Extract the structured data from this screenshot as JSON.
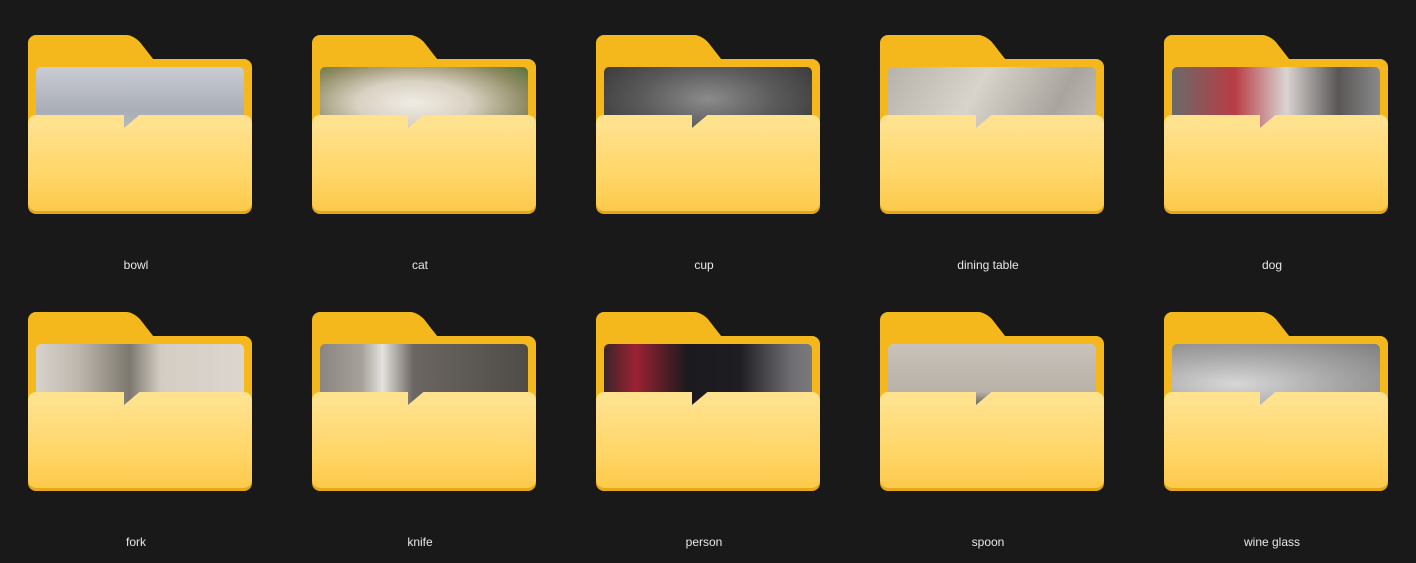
{
  "folders": [
    {
      "name": "bowl",
      "thumb": "bowl"
    },
    {
      "name": "cat",
      "thumb": "cat"
    },
    {
      "name": "cup",
      "thumb": "cup"
    },
    {
      "name": "dining table",
      "thumb": "dining"
    },
    {
      "name": "dog",
      "thumb": "dog"
    },
    {
      "name": "fork",
      "thumb": "fork"
    },
    {
      "name": "knife",
      "thumb": "knife"
    },
    {
      "name": "person",
      "thumb": "person"
    },
    {
      "name": "spoon",
      "thumb": "spoon"
    },
    {
      "name": "wine glass",
      "thumb": "wine"
    }
  ],
  "colors": {
    "background": "#191919",
    "folder_back": "#f5b81c",
    "folder_front": "#ffd565",
    "label_text": "#e8e8e8"
  }
}
